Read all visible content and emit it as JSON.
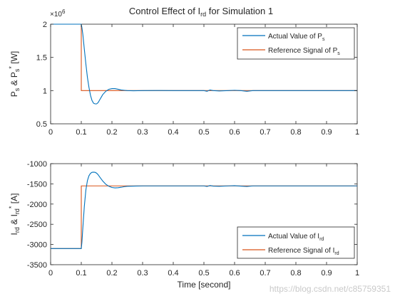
{
  "figure_title": "Control Effect of I",
  "figure_title_sub": "rd",
  "figure_title_rest": " for Simulation 1",
  "watermark": "https://blog.csdn.net/c85759351",
  "colors": {
    "actual": "#0072bd",
    "reference": "#d95319",
    "axes": "#262626",
    "grid_bg": "#ffffff"
  },
  "chart_data": [
    {
      "type": "line",
      "title": "Control Effect of Ird for Simulation 1",
      "ylabel": "Ps & Ps* [W]",
      "xlabel": "",
      "xlim": [
        0,
        1
      ],
      "ylim": [
        0.5,
        2
      ],
      "y_exponent": "×10^6",
      "xticks": [
        0,
        0.1,
        0.2,
        0.3,
        0.4,
        0.5,
        0.6,
        0.7,
        0.8,
        0.9,
        1
      ],
      "xtick_labels": [
        "0",
        "0.1",
        "0.2",
        "0.3",
        "0.4",
        "0.5",
        "0.6",
        "0.7",
        "0.8",
        "0.9",
        "1"
      ],
      "yticks": [
        0.5,
        1,
        1.5,
        2
      ],
      "ytick_labels": [
        "0.5",
        "1",
        "1.5",
        "2"
      ],
      "legend_position": "top-right",
      "series": [
        {
          "name": "Actual Value of Ps",
          "x": [
            0,
            0.1,
            0.102,
            0.105,
            0.11,
            0.115,
            0.12,
            0.125,
            0.13,
            0.135,
            0.14,
            0.145,
            0.15,
            0.155,
            0.16,
            0.165,
            0.17,
            0.18,
            0.19,
            0.2,
            0.21,
            0.22,
            0.23,
            0.24,
            0.25,
            0.27,
            0.3,
            0.35,
            0.4,
            0.45,
            0.5,
            0.51,
            0.52,
            0.53,
            0.55,
            0.58,
            0.6,
            0.62,
            0.64,
            0.66,
            0.7,
            0.8,
            0.9,
            1
          ],
          "y": [
            2,
            2,
            1.95,
            1.85,
            1.62,
            1.4,
            1.2,
            1.05,
            0.93,
            0.85,
            0.81,
            0.8,
            0.8,
            0.82,
            0.86,
            0.9,
            0.94,
            0.99,
            1.02,
            1.03,
            1.03,
            1.02,
            1.01,
            1.005,
            1.0,
            0.997,
            1.0,
            1.002,
            1.0,
            1.0,
            1.0,
            0.99,
            1.01,
            1.0,
            0.995,
            1.0,
            1.005,
            1.0,
            0.99,
            1.0,
            1.0,
            1.0,
            1.0,
            1.0
          ]
        },
        {
          "name": "Reference Signal of Ps",
          "x": [
            0,
            0.1,
            0.1,
            1
          ],
          "y": [
            2,
            2,
            1,
            1
          ]
        }
      ]
    },
    {
      "type": "line",
      "title": "",
      "ylabel": "Ird & Ird* [A]",
      "xlabel": "Time [second]",
      "xlim": [
        0,
        1
      ],
      "ylim": [
        -3500,
        -1000
      ],
      "xticks": [
        0,
        0.1,
        0.2,
        0.3,
        0.4,
        0.5,
        0.6,
        0.7,
        0.8,
        0.9,
        1
      ],
      "xtick_labels": [
        "0",
        "0.1",
        "0.2",
        "0.3",
        "0.4",
        "0.5",
        "0.6",
        "0.7",
        "0.8",
        "0.9",
        "1"
      ],
      "yticks": [
        -3500,
        -3000,
        -2500,
        -2000,
        -1500,
        -1000
      ],
      "ytick_labels": [
        "-3500",
        "-3000",
        "-2500",
        "-2000",
        "-1500",
        "-1000"
      ],
      "legend_position": "bottom-right",
      "series": [
        {
          "name": "Actual Value of Ird",
          "x": [
            0,
            0.1,
            0.102,
            0.105,
            0.11,
            0.115,
            0.12,
            0.125,
            0.13,
            0.135,
            0.14,
            0.145,
            0.15,
            0.155,
            0.16,
            0.17,
            0.18,
            0.19,
            0.2,
            0.21,
            0.22,
            0.23,
            0.24,
            0.25,
            0.27,
            0.3,
            0.35,
            0.4,
            0.5,
            0.51,
            0.52,
            0.53,
            0.55,
            0.58,
            0.6,
            0.62,
            0.64,
            0.66,
            0.7,
            0.8,
            0.9,
            1
          ],
          "y": [
            -3100,
            -3100,
            -2950,
            -2600,
            -2050,
            -1650,
            -1420,
            -1300,
            -1240,
            -1215,
            -1210,
            -1215,
            -1235,
            -1275,
            -1330,
            -1430,
            -1510,
            -1560,
            -1590,
            -1600,
            -1595,
            -1585,
            -1570,
            -1560,
            -1555,
            -1550,
            -1550,
            -1550,
            -1550,
            -1565,
            -1540,
            -1555,
            -1560,
            -1550,
            -1545,
            -1555,
            -1565,
            -1550,
            -1550,
            -1550,
            -1550,
            -1550
          ]
        },
        {
          "name": "Reference Signal of Ird",
          "x": [
            0,
            0.1,
            0.1,
            1
          ],
          "y": [
            -3100,
            -3100,
            -1550,
            -1550
          ]
        }
      ]
    }
  ]
}
